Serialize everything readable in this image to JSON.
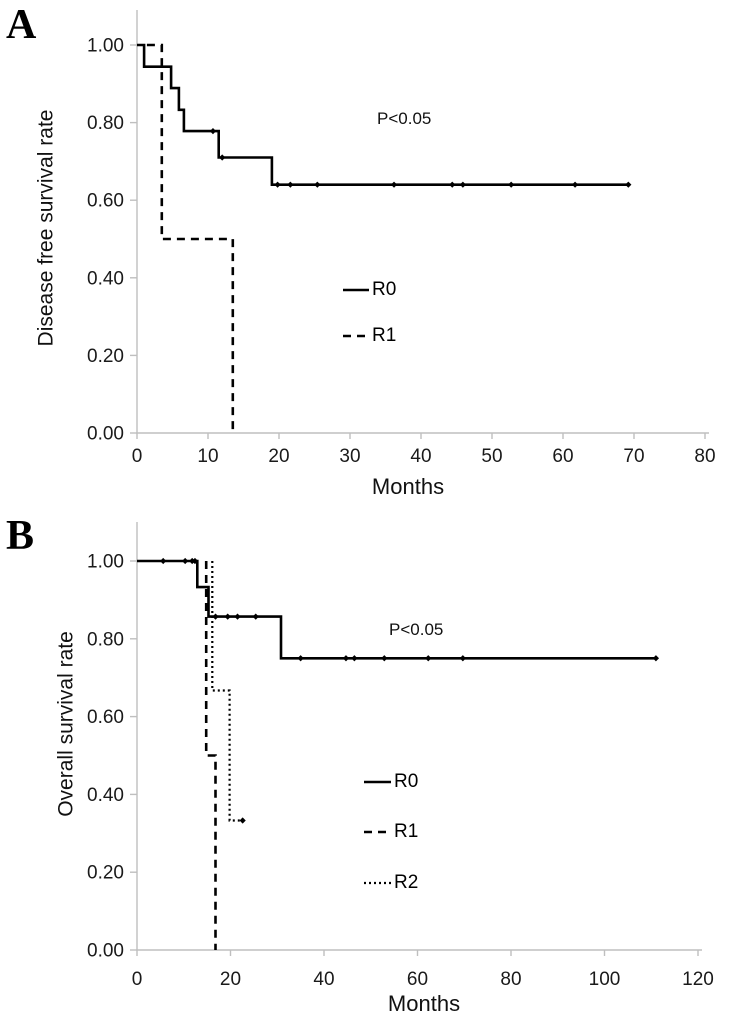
{
  "colors": {
    "curve": "#000000",
    "axis_line": "#bfbfbf",
    "tick_label": "#1a1a1a",
    "background": "#ffffff"
  },
  "chart_data": [
    {
      "type": "line",
      "subtype": "kaplan_meier_step",
      "panel_label": "A",
      "xlabel": "Months",
      "ylabel": "Disease free survival rate",
      "xlim": [
        0,
        80
      ],
      "ylim": [
        0.0,
        1.0
      ],
      "x_ticks": [
        0,
        10,
        20,
        30,
        40,
        50,
        60,
        70,
        80
      ],
      "y_ticks": [
        "0.00",
        "0.20",
        "0.40",
        "0.60",
        "0.80",
        "1.00"
      ],
      "grid": false,
      "annotation": {
        "text": "P<0.05",
        "x": 34,
        "y": 0.81
      },
      "legend_position": "inside-center-right",
      "series": [
        {
          "name": "R0",
          "line_style": "solid",
          "color": "#000000",
          "points": [
            [
              0,
              1.0
            ],
            [
              1,
              1.0
            ],
            [
              1,
              0.944
            ],
            [
              4.8,
              0.944
            ],
            [
              4.8,
              0.889
            ],
            [
              5.9,
              0.889
            ],
            [
              5.9,
              0.833
            ],
            [
              6.6,
              0.833
            ],
            [
              6.6,
              0.778
            ],
            [
              11.5,
              0.778
            ],
            [
              11.5,
              0.71
            ],
            [
              19,
              0.71
            ],
            [
              19,
              0.64
            ],
            [
              69.2,
              0.64
            ]
          ],
          "censor_marks": [
            [
              10.7,
              0.778
            ],
            [
              12,
              0.71
            ],
            [
              19.8,
              0.64
            ],
            [
              21.6,
              0.64
            ],
            [
              25.4,
              0.64
            ],
            [
              36.2,
              0.64
            ],
            [
              44.4,
              0.64
            ],
            [
              45.9,
              0.64
            ],
            [
              52.7,
              0.64
            ],
            [
              61.7,
              0.64
            ],
            [
              69.2,
              0.64
            ]
          ]
        },
        {
          "name": "R1",
          "line_style": "dashed",
          "color": "#000000",
          "points": [
            [
              1.4,
              1.0
            ],
            [
              3.5,
              1.0
            ],
            [
              3.5,
              0.5
            ],
            [
              13.5,
              0.5
            ],
            [
              13.5,
              0.0
            ]
          ],
          "censor_marks": []
        }
      ]
    },
    {
      "type": "line",
      "subtype": "kaplan_meier_step",
      "panel_label": "B",
      "xlabel": "Months",
      "ylabel": "Overall survival rate",
      "xlim": [
        0,
        120
      ],
      "ylim": [
        0.0,
        1.0
      ],
      "x_ticks": [
        0,
        20,
        40,
        60,
        80,
        100,
        120
      ],
      "y_ticks": [
        "0.00",
        "0.20",
        "0.40",
        "0.60",
        "0.80",
        "1.00"
      ],
      "grid": false,
      "annotation": {
        "text": "P<0.05",
        "x": 54,
        "y": 0.825
      },
      "legend_position": "inside-center-right",
      "series": [
        {
          "name": "R0",
          "line_style": "solid",
          "color": "#000000",
          "points": [
            [
              0,
              1.0
            ],
            [
              12.9,
              1.0
            ],
            [
              12.9,
              0.933
            ],
            [
              15.3,
              0.933
            ],
            [
              15.3,
              0.857
            ],
            [
              30.8,
              0.857
            ],
            [
              30.8,
              0.75
            ],
            [
              111,
              0.75
            ]
          ],
          "censor_marks": [
            [
              5.6,
              1.0
            ],
            [
              10.3,
              1.0
            ],
            [
              11.8,
              1.0
            ],
            [
              12.4,
              1.0
            ],
            [
              16.8,
              0.857
            ],
            [
              19.4,
              0.857
            ],
            [
              21.5,
              0.857
            ],
            [
              25.4,
              0.857
            ],
            [
              35,
              0.75
            ],
            [
              44.7,
              0.75
            ],
            [
              46.5,
              0.75
            ],
            [
              52.9,
              0.75
            ],
            [
              62.3,
              0.75
            ],
            [
              69.7,
              0.75
            ],
            [
              111,
              0.75
            ]
          ]
        },
        {
          "name": "R1",
          "line_style": "dashed",
          "color": "#000000",
          "points": [
            [
              14.8,
              1.0
            ],
            [
              14.8,
              0.5
            ],
            [
              16.8,
              0.5
            ],
            [
              16.8,
              0.0
            ]
          ],
          "censor_marks": []
        },
        {
          "name": "R2",
          "line_style": "dotted",
          "color": "#000000",
          "points": [
            [
              16.1,
              1.0
            ],
            [
              16.1,
              0.667
            ],
            [
              19.8,
              0.667
            ],
            [
              19.8,
              0.333
            ],
            [
              22.6,
              0.333
            ]
          ],
          "censor_marks": [
            [
              22.6,
              0.333
            ]
          ]
        }
      ]
    }
  ]
}
